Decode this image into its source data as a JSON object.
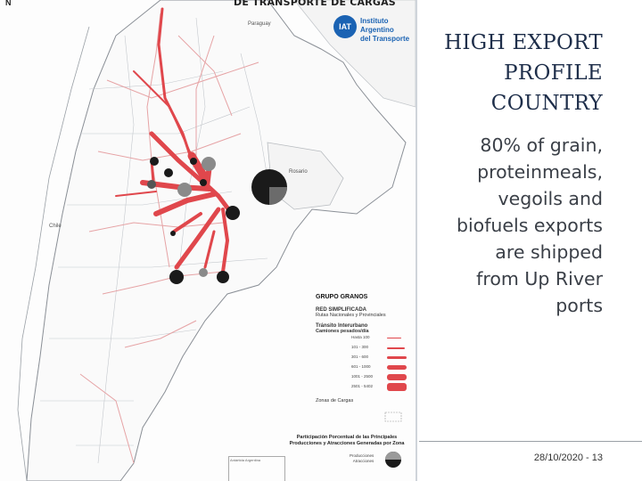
{
  "map": {
    "title": "DE TRANSPORTE DE CARGAS",
    "north": "N",
    "logo": {
      "badge": "IAT",
      "line1": "Instituto Argentino",
      "line2": "del Transporte"
    },
    "labels": {
      "paraguay": "Paraguay",
      "chile": "Chile",
      "rosario": "Rosario"
    },
    "legend": {
      "title": "GRUPO GRANOS",
      "subtitle": "RED SIMPLIFICADA",
      "routes": "Rutas Nacionales y Provinciales",
      "transit": "Tránsito Interurbano",
      "trucks": "Camiones pesados/día",
      "ranges": [
        "Hasta 100",
        "101 - 300",
        "301 - 600",
        "601 - 1000",
        "1001 - 2500",
        "2501 - 5402"
      ],
      "zones": "Zonas de Cargas",
      "participation": "Participación Porcentual de las Principales Producciones y Atracciones Generadas por Zona",
      "productions": "Producciones",
      "attractions": "Atracciones",
      "antarctica": "Antártida Argentina"
    },
    "colors": {
      "route": "#e0474c",
      "node_dark": "#1a1a1a",
      "node_grey": "#8a8a8a",
      "boundary": "#9aa0a6"
    }
  },
  "slide": {
    "heading": [
      "HIGH EXPORT",
      "PROFILE",
      "COUNTRY"
    ],
    "body": [
      "80% of grain,",
      "proteinmeals,",
      "vegoils and",
      "biofuels exports",
      "are shipped",
      "from Up River",
      "ports"
    ],
    "footer": "28/10/2020 - 13"
  }
}
